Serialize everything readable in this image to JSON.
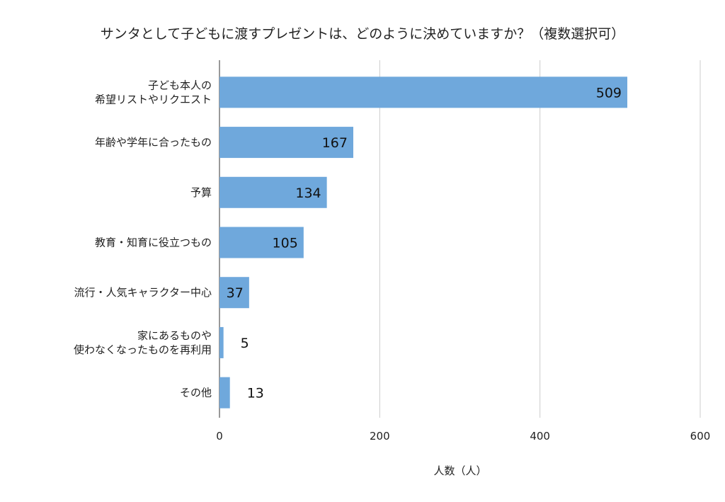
{
  "chart_data": {
    "type": "bar",
    "orientation": "horizontal",
    "title": "サンタとして子どもに渡すプレゼントは、どのように決めていますか？（複数選択可）",
    "xlabel": "人数（人）",
    "ylabel": "",
    "categories": [
      [
        "子ども本人の",
        "希望リストやリクエスト"
      ],
      [
        "年齢や学年に合ったもの"
      ],
      [
        "予算"
      ],
      [
        "教育・知育に役立つもの"
      ],
      [
        "流行・人気キャラクター中心"
      ],
      [
        "家にあるものや",
        "使わなくなったものを再利用"
      ],
      [
        "その他"
      ]
    ],
    "values": [
      509,
      167,
      134,
      105,
      37,
      5,
      13
    ],
    "xlim": [
      0,
      600
    ],
    "xticks": [
      0,
      200,
      400,
      600
    ],
    "grid": true,
    "legend": "none",
    "bar_color": "#6fa8dc"
  }
}
